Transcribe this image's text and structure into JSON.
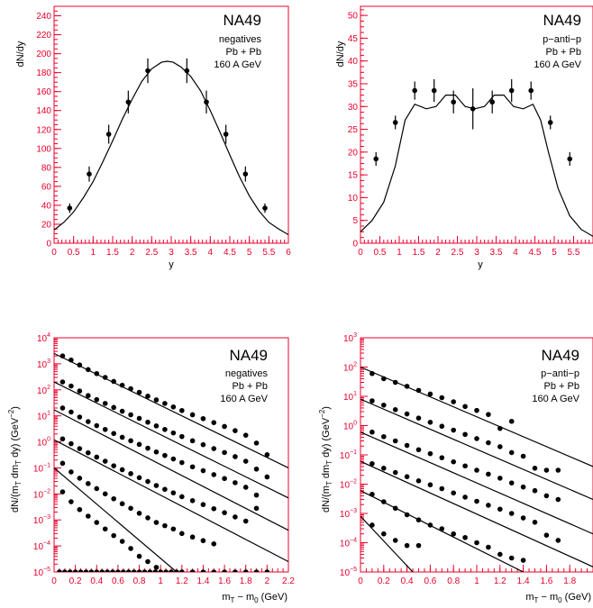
{
  "colors": {
    "axis": "#e8002a",
    "data": "#000000",
    "background": "#ffffff"
  },
  "chart_data": [
    {
      "id": "p1",
      "type": "scatter",
      "scale": "linear",
      "xlim": [
        0,
        6
      ],
      "ylim": [
        0,
        250
      ],
      "xticks": [
        0,
        0.5,
        1,
        1.5,
        2,
        2.5,
        3,
        3.5,
        4,
        4.5,
        5,
        5.5,
        6
      ],
      "xtick_labels": [
        "0",
        "0.5",
        "1",
        "1.5",
        "2",
        "2.5",
        "3",
        "3.5",
        "4",
        "4.5",
        "5",
        "5.5",
        "6"
      ],
      "yticks": [
        0,
        20,
        40,
        60,
        80,
        100,
        120,
        140,
        160,
        180,
        200,
        220,
        240
      ],
      "ytick_labels": [
        "0",
        "20",
        "40",
        "60",
        "80",
        "100",
        "120",
        "140",
        "160",
        "180",
        "200",
        "220",
        "240"
      ],
      "xlabel": "y",
      "ylabel": "dN/dy",
      "annotation": {
        "title": "NA49",
        "lines": [
          "negatives",
          "Pb + Pb",
          "160 A GeV"
        ]
      },
      "series": [
        {
          "kind": "points",
          "x": [
            0.4,
            0.9,
            1.4,
            1.9,
            2.4,
            3.4,
            3.9,
            4.4,
            4.9,
            5.4
          ],
          "y": [
            37,
            73,
            115,
            149,
            182,
            182,
            149,
            115,
            73,
            37
          ],
          "err": [
            5,
            8,
            10,
            12,
            13,
            13,
            12,
            10,
            8,
            5
          ]
        },
        {
          "kind": "line",
          "x": [
            0,
            0.25,
            0.5,
            0.75,
            1,
            1.25,
            1.5,
            1.75,
            2,
            2.25,
            2.5,
            2.75,
            2.9,
            3.05,
            3.25,
            3.5,
            3.75,
            4,
            4.25,
            4.5,
            4.75,
            5,
            5.25,
            5.5,
            5.75,
            6
          ],
          "y": [
            14,
            22,
            33,
            48,
            65,
            86,
            108,
            131,
            152,
            171,
            184,
            191,
            192,
            191,
            186,
            176,
            161,
            140,
            117,
            93,
            70,
            50,
            34,
            22,
            15,
            9
          ]
        }
      ]
    },
    {
      "id": "p2",
      "type": "scatter",
      "scale": "linear",
      "xlim": [
        0,
        6
      ],
      "ylim": [
        0,
        52
      ],
      "xticks": [
        0,
        0.5,
        1,
        1.5,
        2,
        2.5,
        3,
        3.5,
        4,
        4.5,
        5,
        5.5
      ],
      "xtick_labels": [
        "0",
        "0.5",
        "1",
        "1.5",
        "2",
        "2.5",
        "3",
        "3.5",
        "4",
        "4.5",
        "5",
        "5.5"
      ],
      "yticks": [
        0,
        5,
        10,
        15,
        20,
        25,
        30,
        35,
        40,
        45,
        50
      ],
      "ytick_labels": [
        "0",
        "5",
        "10",
        "15",
        "20",
        "25",
        "30",
        "35",
        "40",
        "45",
        "50"
      ],
      "xlabel": "y",
      "ylabel": "dN/dy",
      "annotation": {
        "title": "NA49",
        "lines": [
          "p−anti−p",
          "Pb + Pb",
          "160 A GeV"
        ]
      },
      "series": [
        {
          "kind": "points",
          "x": [
            0.4,
            0.9,
            1.4,
            1.9,
            2.4,
            2.9,
            3.4,
            3.9,
            4.4,
            4.9,
            5.4
          ],
          "y": [
            18.5,
            26.5,
            33.5,
            33.5,
            31,
            29.5,
            31,
            33.5,
            33.5,
            26.5,
            18.5
          ],
          "err": [
            1.5,
            1.5,
            2,
            2.5,
            2.5,
            4.5,
            2.5,
            2.5,
            2,
            1.5,
            1.5
          ]
        },
        {
          "kind": "line",
          "x": [
            0,
            0.3,
            0.6,
            0.9,
            1.15,
            1.4,
            1.7,
            1.95,
            2.2,
            2.45,
            2.7,
            2.95,
            3.2,
            3.45,
            3.7,
            3.95,
            4.2,
            4.45,
            4.65,
            4.85,
            5.1,
            5.4,
            5.7,
            6
          ],
          "y": [
            2.5,
            5,
            9,
            17,
            27,
            30.5,
            29.5,
            30,
            32.5,
            32.5,
            30,
            29.5,
            30,
            32.5,
            32.5,
            30,
            29.5,
            30.5,
            27,
            20,
            12,
            6,
            3,
            1.5
          ]
        }
      ]
    },
    {
      "id": "p3",
      "type": "scatter",
      "scale": "log",
      "xlim": [
        0,
        2.2
      ],
      "ylim": [
        1e-05,
        10000
      ],
      "xticks": [
        0,
        0.2,
        0.4,
        0.6,
        0.8,
        1,
        1.2,
        1.4,
        1.6,
        1.8,
        2,
        2.2
      ],
      "xtick_labels": [
        "0",
        "0.2",
        "0.4",
        "0.6",
        "0.8",
        "1",
        "1.2",
        "1.4",
        "1.6",
        "1.8",
        "2",
        "2.2"
      ],
      "ydecades": [
        -5,
        -4,
        -3,
        -2,
        -1,
        0,
        1,
        2,
        3,
        4
      ],
      "xlabel": "m_T − m_0 (GeV)",
      "ylabel": "dN/(m_T dm_T dy) (GeV^−2)",
      "annotation": {
        "title": "NA49",
        "lines": [
          "negatives",
          "Pb + Pb",
          "160 A GeV"
        ]
      },
      "series": [
        {
          "kind": "points",
          "x": [
            0.05,
            0.1,
            0.15,
            0.2,
            0.25,
            0.3,
            0.35,
            0.4,
            0.45,
            0.5,
            0.55,
            0.6,
            0.65,
            0.7,
            0.75,
            0.8,
            0.85,
            0.9,
            0.95,
            1.0,
            1.05,
            1.1,
            1.15,
            1.2,
            1.3,
            1.4,
            1.5,
            1.6,
            1.7,
            1.8,
            1.9,
            2.0
          ],
          "y": [
            1e-05,
            1e-05,
            1e-05,
            1e-05,
            1e-05,
            1e-05,
            1e-05,
            1e-05,
            1e-05,
            1e-05,
            1e-05,
            1e-05,
            1e-05,
            1e-05,
            1e-05,
            1e-05,
            1e-05,
            1e-05,
            1e-05,
            1e-05,
            1e-05,
            1e-05,
            1e-05,
            1e-05,
            1e-05,
            1e-05,
            1e-05,
            1e-05,
            1e-05,
            1e-05,
            1e-05,
            1e-05
          ]
        },
        {
          "kind": "points",
          "x": [
            0.08,
            0.16,
            0.24,
            0.32,
            0.4,
            0.48,
            0.56,
            0.64,
            0.72,
            0.8,
            0.88,
            0.96,
            1.04,
            1.12,
            1.2,
            1.3,
            1.4,
            1.5,
            1.6,
            1.7,
            1.8,
            1.9,
            2.0
          ],
          "y": [
            2000,
            1400,
            900,
            600,
            420,
            300,
            210,
            150,
            110,
            80,
            57,
            41,
            30,
            22,
            16,
            11,
            7.8,
            5.5,
            3.9,
            2.7,
            1.8,
            0.9,
            0.32
          ]
        },
        {
          "kind": "points",
          "x": [
            0.08,
            0.16,
            0.24,
            0.32,
            0.4,
            0.48,
            0.56,
            0.64,
            0.72,
            0.8,
            0.88,
            0.96,
            1.04,
            1.12,
            1.2,
            1.3,
            1.4,
            1.5,
            1.6,
            1.7,
            1.8,
            1.9,
            2.0
          ],
          "y": [
            200,
            140,
            90,
            60,
            42,
            30,
            21,
            15,
            11,
            8,
            5.7,
            4.1,
            3.0,
            2.2,
            1.6,
            1.1,
            0.78,
            0.55,
            0.39,
            0.27,
            0.18,
            0.09,
            0.045
          ]
        },
        {
          "kind": "points",
          "x": [
            0.08,
            0.16,
            0.24,
            0.32,
            0.4,
            0.48,
            0.56,
            0.64,
            0.72,
            0.8,
            0.88,
            0.96,
            1.04,
            1.12,
            1.2,
            1.3,
            1.4,
            1.5,
            1.6,
            1.7,
            1.8,
            1.9
          ],
          "y": [
            20,
            14,
            9,
            6,
            4.2,
            3.0,
            2.1,
            1.5,
            1.1,
            0.8,
            0.57,
            0.41,
            0.3,
            0.22,
            0.16,
            0.11,
            0.078,
            0.055,
            0.039,
            0.027,
            0.018,
            0.009
          ]
        },
        {
          "kind": "points",
          "x": [
            0.08,
            0.16,
            0.24,
            0.32,
            0.4,
            0.48,
            0.56,
            0.64,
            0.72,
            0.8,
            0.88,
            0.96,
            1.04,
            1.12,
            1.2,
            1.3,
            1.4,
            1.5,
            1.6,
            1.7,
            1.8,
            1.9
          ],
          "y": [
            1.3,
            0.85,
            0.55,
            0.38,
            0.26,
            0.18,
            0.12,
            0.085,
            0.06,
            0.042,
            0.03,
            0.021,
            0.015,
            0.011,
            0.0078,
            0.0055,
            0.0039,
            0.0027,
            0.0019,
            0.0013,
            0.0009,
            0.0028
          ]
        },
        {
          "kind": "points",
          "x": [
            0.08,
            0.16,
            0.24,
            0.32,
            0.4,
            0.48,
            0.56,
            0.64,
            0.72,
            0.8,
            0.88,
            0.96,
            1.04,
            1.12,
            1.2,
            1.3,
            1.4,
            1.5
          ],
          "y": [
            0.15,
            0.07,
            0.04,
            0.025,
            0.016,
            0.01,
            0.0065,
            0.0042,
            0.0028,
            0.0018,
            0.0012,
            0.0008,
            0.0006,
            0.00045,
            0.0003,
            0.00022,
            0.00016,
            0.00012
          ]
        },
        {
          "kind": "points",
          "x": [
            0.08,
            0.16,
            0.24,
            0.32,
            0.4,
            0.48,
            0.56,
            0.64,
            0.72,
            0.8,
            0.88,
            0.96
          ],
          "y": [
            0.012,
            0.005,
            0.0025,
            0.0014,
            0.0008,
            0.00045,
            0.00025,
            0.00015,
            8e-05,
            4e-05,
            2.5e-05,
            1.5e-05
          ]
        },
        {
          "kind": "line",
          "x": [
            0,
            2.2
          ],
          "y": [
            2500,
            0.1
          ]
        },
        {
          "kind": "line",
          "x": [
            0,
            2.2
          ],
          "y": [
            200,
            0.007
          ]
        },
        {
          "kind": "line",
          "x": [
            0,
            2.2
          ],
          "y": [
            17,
            0.0004
          ]
        },
        {
          "kind": "line",
          "x": [
            0,
            2.2
          ],
          "y": [
            1.2,
            2.5e-05
          ]
        },
        {
          "kind": "line",
          "x": [
            0,
            1.15
          ],
          "y": [
            0.1,
            1e-05
          ]
        }
      ]
    },
    {
      "id": "p4",
      "type": "scatter",
      "scale": "log",
      "xlim": [
        0,
        2.0
      ],
      "ylim": [
        1e-05,
        1000
      ],
      "xticks": [
        0,
        0.2,
        0.4,
        0.6,
        0.8,
        1,
        1.2,
        1.4,
        1.6,
        1.8
      ],
      "xtick_labels": [
        "0",
        "0.2",
        "0.4",
        "0.6",
        "0.8",
        "1",
        "1.2",
        "1.4",
        "1.6",
        "1.8"
      ],
      "ydecades": [
        -5,
        -4,
        -3,
        -2,
        -1,
        0,
        1,
        2,
        3
      ],
      "xlabel": "m_T − m_0 (GeV)",
      "ylabel": "dN/(m_T dm_T dy) (GeV^−2)",
      "annotation": {
        "title": "NA49",
        "lines": [
          "p−anti−p",
          "Pb + Pb",
          "160 A GeV"
        ]
      },
      "series": [
        {
          "kind": "points",
          "x": [
            0.1,
            0.2,
            0.3,
            0.4,
            0.5,
            0.6,
            0.7,
            0.8,
            0.9,
            1.0,
            1.1,
            1.2,
            1.3
          ],
          "y": [
            60,
            40,
            30,
            22,
            16,
            12,
            9,
            6.5,
            4.5,
            3.3,
            2.4,
            0.8,
            1.4
          ]
        },
        {
          "kind": "points",
          "x": [
            0.1,
            0.2,
            0.3,
            0.4,
            0.5,
            0.6,
            0.7,
            0.8,
            0.9,
            1.0,
            1.1,
            1.2,
            1.3,
            1.4,
            1.5,
            1.6,
            1.7
          ],
          "y": [
            7,
            5,
            3.5,
            2.5,
            1.8,
            1.3,
            0.95,
            0.7,
            0.5,
            0.36,
            0.26,
            0.19,
            0.12,
            0.09,
            0.035,
            0.03,
            0.03
          ]
        },
        {
          "kind": "points",
          "x": [
            0.1,
            0.2,
            0.3,
            0.4,
            0.5,
            0.6,
            0.7,
            0.8,
            0.9,
            1.0,
            1.1,
            1.2,
            1.3,
            1.4,
            1.5,
            1.6,
            1.7
          ],
          "y": [
            0.6,
            0.42,
            0.3,
            0.21,
            0.15,
            0.11,
            0.08,
            0.058,
            0.042,
            0.03,
            0.022,
            0.016,
            0.011,
            0.008,
            0.006,
            0.004,
            0.003
          ]
        },
        {
          "kind": "points",
          "x": [
            0.1,
            0.2,
            0.3,
            0.4,
            0.5,
            0.6,
            0.7,
            0.8,
            0.9,
            1.0,
            1.1,
            1.2,
            1.3,
            1.4,
            1.5,
            1.6,
            1.7
          ],
          "y": [
            0.05,
            0.035,
            0.025,
            0.018,
            0.013,
            0.0095,
            0.007,
            0.005,
            0.0036,
            0.0026,
            0.0019,
            0.0014,
            0.001,
            0.0007,
            0.0005,
            0.00018,
            0.00012
          ]
        },
        {
          "kind": "points",
          "x": [
            0.1,
            0.2,
            0.3,
            0.4,
            0.5,
            0.6,
            0.7,
            0.8,
            0.9,
            1.0,
            1.1,
            1.2,
            1.3,
            1.4
          ],
          "y": [
            0.0045,
            0.0025,
            0.0015,
            0.0009,
            0.0006,
            0.0004,
            0.0003,
            0.0002,
            0.00015,
            0.0001,
            7e-05,
            4e-05,
            3e-05,
            2.5e-05
          ]
        },
        {
          "kind": "points",
          "x": [
            0.1,
            0.2,
            0.3,
            0.4,
            0.5
          ],
          "y": [
            0.0004,
            0.0002,
            0.00012,
            8e-05,
            8e-05
          ]
        },
        {
          "kind": "line",
          "x": [
            0,
            2.0
          ],
          "y": [
            100,
            0.04
          ]
        },
        {
          "kind": "line",
          "x": [
            0,
            2.0
          ],
          "y": [
            8,
            0.003
          ]
        },
        {
          "kind": "line",
          "x": [
            0,
            2.0
          ],
          "y": [
            0.6,
            0.0002
          ]
        },
        {
          "kind": "line",
          "x": [
            0,
            2.0
          ],
          "y": [
            0.06,
            1.5e-05
          ]
        },
        {
          "kind": "line",
          "x": [
            0,
            1.4
          ],
          "y": [
            0.006,
            1e-05
          ]
        },
        {
          "kind": "line",
          "x": [
            0,
            0.45
          ],
          "y": [
            0.0008,
            1e-05
          ]
        }
      ]
    }
  ]
}
